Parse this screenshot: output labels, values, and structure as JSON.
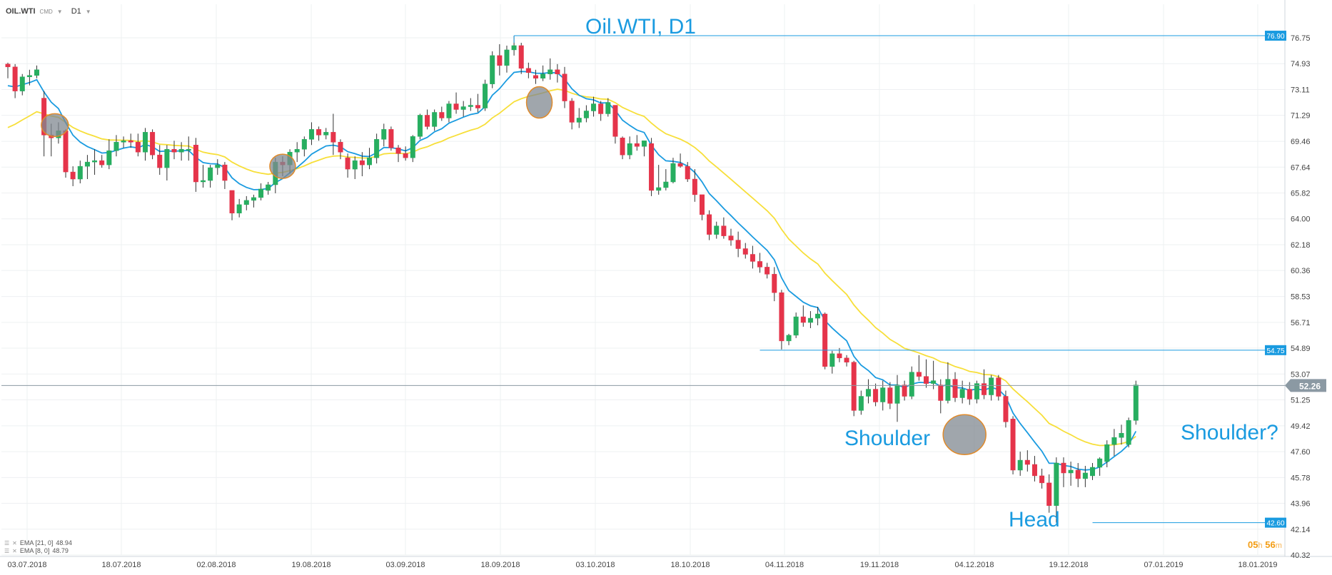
{
  "header": {
    "symbol": "OIL.WTI",
    "type": "CMD",
    "timeframe": "D1"
  },
  "legend": [
    {
      "label": "EMA [21, 0]",
      "value": "48.94"
    },
    {
      "label": "EMA [8, 0]",
      "value": "48.79"
    }
  ],
  "timer": {
    "hours": "05",
    "h_unit": "h",
    "minutes": "56",
    "m_unit": "m"
  },
  "colors": {
    "up": "#27ae60",
    "down": "#e5344a",
    "ema8": "#1a9be0",
    "ema21": "#f7df3a",
    "annotation": "#1a9be0",
    "current_price_line": "#8b99a3",
    "circle_fill": "#808890",
    "circle_stroke": "#e08a2a"
  },
  "chart_data": {
    "type": "candlestick",
    "title": "Oil.WTI, D1",
    "y_ticks": [
      76.75,
      74.93,
      73.11,
      71.29,
      69.46,
      67.64,
      65.82,
      64.0,
      62.18,
      60.36,
      58.53,
      56.71,
      54.89,
      53.07,
      51.25,
      49.42,
      47.6,
      45.78,
      43.96,
      42.14,
      40.32
    ],
    "y_tick_labels": [
      "76.75",
      "74.93",
      "73.11",
      "71.29",
      "69.46",
      "67.64",
      "65.82",
      "64.00",
      "62.18",
      "60.36",
      "58.53",
      "56.71",
      "54.89",
      "53.07",
      "51.25",
      "49.42",
      "47.60",
      "45.78",
      "43.96",
      "42.14",
      "40.32"
    ],
    "x_tick_labels": [
      "03.07.2018",
      "18.07.2018",
      "02.08.2018",
      "19.08.2018",
      "03.09.2018",
      "18.09.2018",
      "03.10.2018",
      "18.10.2018",
      "04.11.2018",
      "19.11.2018",
      "04.12.2018",
      "19.12.2018",
      "07.01.2019",
      "18.01.2019"
    ],
    "ylim": [
      40.32,
      78.2
    ],
    "current_price": 52.26,
    "current_price_label": "52.26",
    "levels": [
      {
        "value": 76.9,
        "label": "76.90"
      },
      {
        "value": 54.75,
        "label": "54.75"
      },
      {
        "value": 42.6,
        "label": "42.60"
      }
    ],
    "annotations": [
      "Shoulder",
      "Head",
      "Shoulder?"
    ],
    "candles": [
      [
        74.9,
        75.0,
        73.9,
        74.7
      ],
      [
        74.7,
        74.9,
        72.5,
        73.0
      ],
      [
        73.0,
        74.2,
        72.7,
        74.0
      ],
      [
        74.0,
        74.5,
        73.4,
        74.1
      ],
      [
        74.1,
        74.8,
        73.9,
        74.5
      ],
      [
        72.5,
        73.0,
        68.4,
        69.9
      ],
      [
        69.9,
        70.7,
        68.4,
        69.7
      ],
      [
        69.7,
        70.8,
        69.3,
        70.2
      ],
      [
        70.2,
        70.3,
        66.9,
        67.3
      ],
      [
        67.3,
        67.7,
        66.3,
        66.8
      ],
      [
        66.8,
        68.1,
        66.5,
        67.7
      ],
      [
        67.7,
        68.5,
        66.8,
        68.0
      ],
      [
        68.0,
        68.9,
        67.1,
        68.1
      ],
      [
        68.1,
        68.5,
        67.6,
        67.8
      ],
      [
        67.8,
        69.6,
        67.5,
        68.8
      ],
      [
        68.8,
        69.9,
        68.4,
        69.4
      ],
      [
        69.4,
        69.8,
        69.0,
        69.5
      ],
      [
        69.5,
        70.0,
        69.0,
        69.4
      ],
      [
        69.4,
        70.0,
        68.4,
        68.7
      ],
      [
        68.7,
        70.4,
        68.1,
        70.1
      ],
      [
        70.1,
        70.3,
        68.2,
        68.5
      ],
      [
        68.5,
        69.2,
        67.1,
        67.6
      ],
      [
        67.6,
        69.2,
        66.7,
        68.9
      ],
      [
        68.9,
        69.5,
        68.2,
        68.7
      ],
      [
        68.7,
        69.4,
        68.1,
        68.9
      ],
      [
        68.9,
        69.8,
        68.1,
        68.9
      ],
      [
        69.2,
        69.7,
        65.9,
        66.6
      ],
      [
        66.6,
        67.8,
        66.2,
        66.7
      ],
      [
        66.7,
        67.8,
        66.2,
        67.6
      ],
      [
        67.6,
        68.2,
        67.1,
        67.8
      ],
      [
        67.8,
        68.0,
        66.1,
        66.7
      ],
      [
        66.0,
        66.0,
        63.9,
        64.4
      ],
      [
        64.4,
        65.4,
        64.1,
        65.0
      ],
      [
        65.0,
        65.6,
        64.6,
        65.3
      ],
      [
        65.3,
        65.7,
        64.8,
        65.5
      ],
      [
        65.5,
        66.5,
        65.3,
        66.1
      ],
      [
        66.0,
        66.6,
        65.7,
        66.4
      ],
      [
        66.4,
        68.3,
        65.8,
        68.0
      ],
      [
        68.0,
        68.4,
        67.0,
        67.8
      ],
      [
        67.8,
        68.9,
        67.2,
        68.7
      ],
      [
        68.7,
        69.4,
        68.0,
        68.9
      ],
      [
        68.9,
        69.8,
        68.4,
        69.6
      ],
      [
        69.6,
        70.8,
        69.2,
        70.3
      ],
      [
        70.3,
        70.5,
        69.5,
        69.9
      ],
      [
        69.9,
        70.4,
        69.6,
        70.1
      ],
      [
        70.1,
        71.4,
        68.5,
        69.4
      ],
      [
        69.4,
        69.6,
        68.2,
        68.7
      ],
      [
        68.3,
        68.6,
        66.9,
        67.5
      ],
      [
        67.5,
        68.4,
        66.8,
        68.1
      ],
      [
        68.1,
        68.7,
        67.0,
        67.8
      ],
      [
        67.8,
        69.0,
        67.5,
        68.3
      ],
      [
        68.3,
        70.0,
        67.9,
        69.6
      ],
      [
        69.6,
        70.7,
        69.1,
        70.3
      ],
      [
        70.3,
        70.5,
        68.8,
        69.0
      ],
      [
        69.0,
        69.2,
        68.0,
        68.6
      ],
      [
        68.6,
        69.1,
        68.1,
        68.3
      ],
      [
        68.3,
        69.9,
        68.0,
        69.8
      ],
      [
        69.8,
        71.4,
        69.6,
        71.3
      ],
      [
        71.3,
        71.7,
        70.3,
        70.5
      ],
      [
        70.5,
        71.7,
        70.2,
        71.5
      ],
      [
        71.5,
        71.9,
        70.9,
        71.1
      ],
      [
        71.1,
        72.3,
        70.8,
        72.1
      ],
      [
        72.1,
        72.9,
        71.4,
        71.7
      ],
      [
        71.7,
        72.3,
        71.2,
        71.9
      ],
      [
        71.9,
        72.5,
        71.6,
        72.0
      ],
      [
        72.0,
        72.8,
        71.5,
        71.8
      ],
      [
        71.8,
        73.8,
        71.6,
        73.5
      ],
      [
        73.5,
        75.8,
        73.2,
        75.5
      ],
      [
        75.5,
        76.3,
        74.1,
        74.8
      ],
      [
        74.8,
        76.2,
        74.3,
        75.9
      ],
      [
        75.9,
        76.9,
        75.5,
        76.2
      ],
      [
        76.2,
        76.4,
        74.2,
        74.6
      ],
      [
        74.6,
        75.0,
        73.9,
        74.3
      ],
      [
        74.1,
        74.5,
        73.5,
        73.9
      ],
      [
        73.9,
        74.8,
        73.7,
        74.2
      ],
      [
        74.2,
        75.3,
        73.8,
        74.5
      ],
      [
        74.5,
        74.9,
        73.6,
        74.2
      ],
      [
        74.2,
        74.7,
        71.8,
        72.3
      ],
      [
        72.3,
        72.5,
        70.3,
        70.8
      ],
      [
        70.8,
        71.8,
        70.4,
        71.1
      ],
      [
        71.1,
        72.0,
        70.8,
        71.6
      ],
      [
        71.6,
        72.6,
        71.2,
        72.1
      ],
      [
        72.1,
        72.3,
        70.9,
        71.4
      ],
      [
        71.4,
        72.5,
        71.2,
        72.2
      ],
      [
        72.0,
        72.0,
        69.3,
        69.8
      ],
      [
        69.7,
        69.8,
        68.2,
        68.5
      ],
      [
        68.5,
        69.8,
        68.2,
        69.3
      ],
      [
        69.3,
        69.9,
        68.8,
        69.1
      ],
      [
        69.1,
        69.5,
        68.4,
        69.5
      ],
      [
        69.3,
        69.7,
        65.6,
        66.0
      ],
      [
        66.0,
        67.8,
        65.7,
        66.2
      ],
      [
        66.2,
        67.5,
        66.0,
        66.6
      ],
      [
        66.6,
        68.3,
        66.5,
        67.9
      ],
      [
        67.9,
        68.6,
        67.6,
        67.7
      ],
      [
        67.7,
        68.0,
        66.6,
        66.8
      ],
      [
        66.8,
        67.5,
        65.2,
        65.7
      ],
      [
        65.7,
        65.7,
        63.9,
        64.3
      ],
      [
        64.3,
        64.6,
        62.5,
        62.9
      ],
      [
        62.9,
        63.8,
        62.6,
        63.5
      ],
      [
        63.5,
        64.1,
        62.6,
        62.8
      ],
      [
        62.8,
        63.3,
        62.1,
        62.5
      ],
      [
        62.5,
        63.1,
        61.3,
        61.9
      ],
      [
        61.9,
        62.3,
        61.2,
        61.5
      ],
      [
        61.5,
        62.1,
        60.5,
        61.0
      ],
      [
        61.0,
        61.6,
        60.2,
        60.6
      ],
      [
        60.6,
        60.9,
        59.8,
        60.1
      ],
      [
        60.1,
        60.6,
        58.2,
        58.8
      ],
      [
        58.8,
        59.0,
        54.8,
        55.4
      ],
      [
        55.4,
        55.9,
        55.1,
        55.8
      ],
      [
        55.8,
        57.4,
        55.6,
        57.1
      ],
      [
        57.1,
        57.9,
        56.4,
        56.7
      ],
      [
        56.7,
        57.5,
        56.3,
        57.0
      ],
      [
        57.0,
        57.8,
        56.5,
        57.3
      ],
      [
        57.3,
        57.4,
        53.4,
        53.6
      ],
      [
        53.6,
        54.7,
        53.1,
        54.5
      ],
      [
        54.5,
        54.9,
        53.9,
        54.2
      ],
      [
        54.2,
        54.4,
        53.6,
        53.9
      ],
      [
        53.9,
        54.0,
        50.1,
        50.5
      ],
      [
        50.5,
        51.9,
        50.2,
        51.5
      ],
      [
        51.5,
        52.7,
        51.0,
        52.0
      ],
      [
        52.0,
        52.4,
        50.8,
        51.1
      ],
      [
        51.1,
        52.6,
        50.5,
        52.1
      ],
      [
        52.1,
        52.5,
        50.6,
        51.0
      ],
      [
        51.0,
        53.0,
        49.7,
        52.3
      ],
      [
        52.3,
        52.6,
        51.2,
        51.5
      ],
      [
        51.5,
        53.6,
        51.3,
        53.2
      ],
      [
        53.2,
        54.4,
        52.6,
        52.9
      ],
      [
        52.9,
        54.1,
        52.1,
        52.4
      ],
      [
        52.4,
        54.0,
        52.0,
        52.6
      ],
      [
        52.3,
        52.7,
        50.3,
        51.2
      ],
      [
        51.2,
        53.9,
        51.0,
        52.7
      ],
      [
        52.7,
        53.2,
        51.1,
        51.4
      ],
      [
        51.4,
        52.6,
        51.0,
        52.0
      ],
      [
        52.0,
        52.5,
        50.9,
        51.3
      ],
      [
        51.3,
        52.6,
        51.0,
        52.4
      ],
      [
        52.4,
        53.4,
        51.3,
        51.6
      ],
      [
        51.6,
        53.0,
        51.2,
        52.8
      ],
      [
        52.8,
        53.0,
        51.2,
        51.5
      ],
      [
        51.5,
        51.9,
        49.3,
        49.7
      ],
      [
        49.9,
        50.1,
        46.0,
        46.3
      ],
      [
        46.3,
        47.6,
        45.9,
        47.0
      ],
      [
        47.0,
        47.7,
        46.2,
        46.7
      ],
      [
        46.7,
        47.3,
        45.5,
        45.9
      ],
      [
        45.9,
        46.4,
        45.0,
        45.4
      ],
      [
        45.4,
        46.0,
        43.3,
        43.8
      ],
      [
        43.8,
        47.2,
        42.6,
        46.8
      ],
      [
        46.8,
        47.2,
        45.1,
        46.1
      ],
      [
        46.1,
        46.9,
        45.2,
        46.3
      ],
      [
        46.3,
        46.8,
        45.1,
        45.7
      ],
      [
        45.7,
        46.6,
        45.1,
        46.1
      ],
      [
        45.9,
        46.8,
        45.6,
        46.5
      ],
      [
        46.5,
        47.2,
        45.9,
        47.1
      ],
      [
        46.9,
        48.4,
        46.5,
        48.1
      ],
      [
        48.1,
        49.2,
        47.3,
        48.6
      ],
      [
        48.6,
        49.5,
        48.1,
        48.9
      ],
      [
        48.1,
        50.0,
        47.9,
        49.8
      ],
      [
        49.8,
        52.6,
        49.5,
        52.3
      ]
    ]
  }
}
